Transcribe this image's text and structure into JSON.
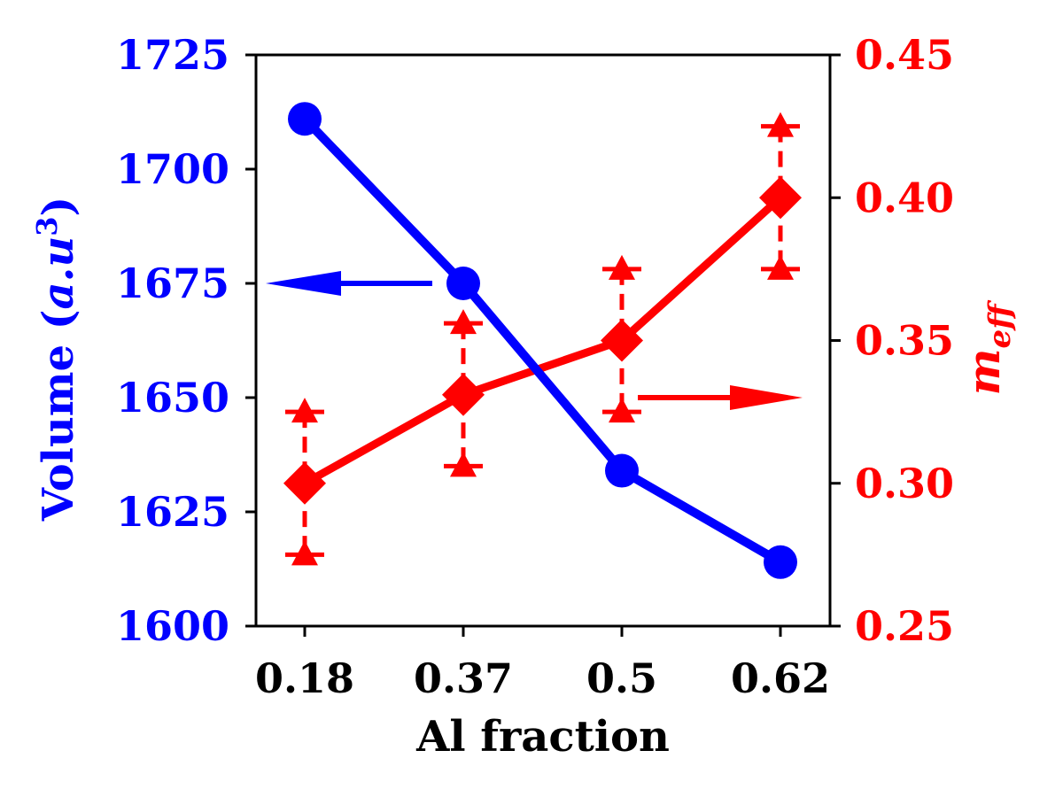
{
  "chart_data": {
    "type": "line",
    "xlabel": "Al fraction",
    "x_categories": [
      "0.18",
      "0.37",
      "0.5",
      "0.62"
    ],
    "y_left": {
      "label_text": "Volume (",
      "label_math_base": "a.u",
      "label_math_sup": "3",
      "label_close": ")",
      "ylim": [
        1600,
        1725
      ],
      "ticks": [
        1600,
        1625,
        1650,
        1675,
        1700,
        1725
      ],
      "tick_labels": [
        "1600",
        "1625",
        "1650",
        "1675",
        "1700",
        "1725"
      ],
      "color": "#0000ff"
    },
    "y_right": {
      "label_base": "m",
      "label_sub": "eff",
      "ylim": [
        0.25,
        0.45
      ],
      "ticks": [
        0.25,
        0.3,
        0.35,
        0.4,
        0.45
      ],
      "tick_labels": [
        "0.25",
        "0.30",
        "0.35",
        "0.40",
        "0.45"
      ],
      "color": "#ff0000"
    },
    "series": [
      {
        "axis": "left",
        "marker": "circle",
        "color": "#0000ff",
        "values": [
          1711,
          1675,
          1634,
          1614
        ]
      },
      {
        "axis": "right",
        "marker": "diamond",
        "color": "#ff0000",
        "values": [
          0.3,
          0.331,
          0.35,
          0.4
        ],
        "error_low": [
          0.275,
          0.306,
          0.325,
          0.375
        ],
        "error_high": [
          0.325,
          0.356,
          0.375,
          0.425
        ]
      }
    ],
    "annotations": [
      {
        "type": "arrow",
        "direction": "left",
        "color": "#0000ff",
        "points_to": "left-axis"
      },
      {
        "type": "arrow",
        "direction": "right",
        "color": "#ff0000",
        "points_to": "right-axis"
      }
    ],
    "grid": false,
    "legend": "none"
  }
}
